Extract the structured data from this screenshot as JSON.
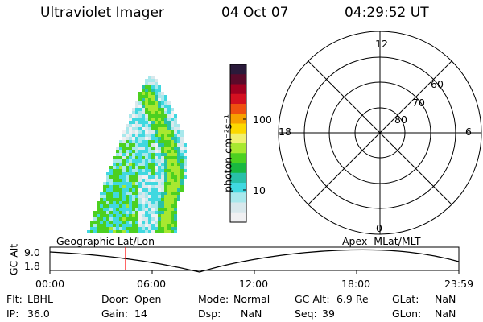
{
  "header": {
    "instrument": "Ultraviolet Imager",
    "date": "04 Oct 07",
    "time": "04:29:52 UT"
  },
  "colorbar": {
    "label": "photon cm⁻²s⁻¹",
    "ticks": [
      "100",
      "10"
    ],
    "colors": [
      "#2a1a3a",
      "#5a0a2a",
      "#a00020",
      "#d41020",
      "#ef5010",
      "#f7a000",
      "#fcd800",
      "#f0f070",
      "#a8e830",
      "#4cd020",
      "#18b840",
      "#28c0a8",
      "#40d8e0",
      "#a8e8ec",
      "#d8e8ec",
      "#f0f0f2"
    ]
  },
  "polar_plot": {
    "mlt_labels": {
      "top": "12",
      "left": "18",
      "right": "6",
      "bottom": "0"
    },
    "lat_labels": [
      "60",
      "70",
      "80"
    ]
  },
  "timeline": {
    "left_label": "Geographic Lat/Lon",
    "right_label": "Apex  MLat/MLT",
    "axis_label": "GC Alt",
    "y_ticks": [
      "9.0",
      "1.8"
    ],
    "x_ticks": [
      "00:00",
      "06:00",
      "12:00",
      "18:00",
      "23:59"
    ],
    "marker_color": "#ff0000"
  },
  "info": {
    "row1": [
      {
        "label": "Flt:",
        "value": "LBHL"
      },
      {
        "label": "Door:",
        "value": "Open"
      },
      {
        "label": "Mode:",
        "value": "Normal"
      },
      {
        "label": "GC Alt:",
        "value": "6.9 Re"
      },
      {
        "label": "GLat:",
        "value": "NaN"
      }
    ],
    "row2": [
      {
        "label": "IP:",
        "value": "36.0"
      },
      {
        "label": "Gain:",
        "value": "14"
      },
      {
        "label": "Dsp:",
        "value": "NaN"
      },
      {
        "label": "Seq:",
        "value": "39"
      },
      {
        "label": "GLon:",
        "value": "NaN"
      }
    ]
  }
}
